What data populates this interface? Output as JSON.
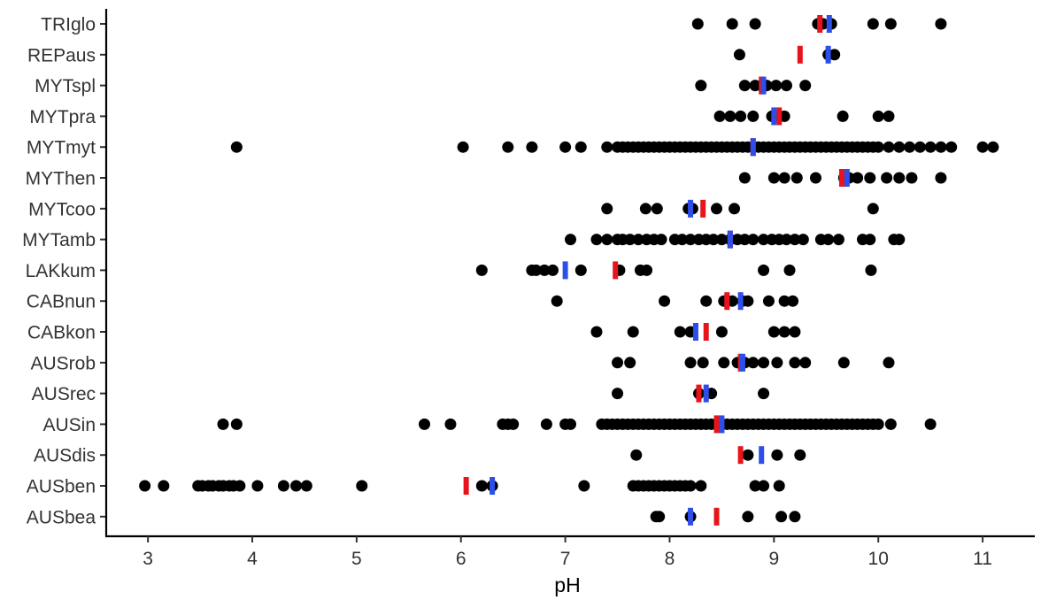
{
  "chart_data": {
    "type": "scatter",
    "xlabel": "pH",
    "ylabel": "",
    "xlim": [
      2.6,
      11.5
    ],
    "xticks": [
      3,
      4,
      5,
      6,
      7,
      8,
      9,
      10,
      11
    ],
    "grid": false,
    "colors": {
      "point": "#000000",
      "mean_marker": "#e8141b",
      "median_marker": "#2d4ee8"
    },
    "categories": [
      "TRIglo",
      "REPaus",
      "MYTspl",
      "MYTpra",
      "MYTmyt",
      "MYThen",
      "MYTcoo",
      "MYTamb",
      "LAKkum",
      "CABnun",
      "CABkon",
      "AUSrob",
      "AUSrec",
      "AUSin",
      "AUSdis",
      "AUSben",
      "AUSbea"
    ],
    "series": [
      {
        "category": "TRIglo",
        "points": [
          8.27,
          8.6,
          8.82,
          9.42,
          9.47,
          9.55,
          9.95,
          10.12,
          10.6
        ],
        "red": 9.44,
        "blue": 9.53
      },
      {
        "category": "REPaus",
        "points": [
          8.67,
          9.52,
          9.58
        ],
        "red": 9.25,
        "blue": 9.52
      },
      {
        "category": "MYTspl",
        "points": [
          8.3,
          8.72,
          8.82,
          8.88,
          8.93,
          9.02,
          9.12,
          9.3
        ],
        "red": 8.88,
        "blue": 8.9
      },
      {
        "category": "MYTpra",
        "points": [
          8.48,
          8.58,
          8.68,
          8.8,
          8.98,
          9.02,
          9.1,
          9.66,
          10.0,
          10.1
        ],
        "red": 9.05,
        "blue": 9.0
      },
      {
        "category": "MYTmyt",
        "points": [
          3.85,
          6.02,
          6.45,
          6.68,
          7.0,
          7.15,
          7.4,
          7.5,
          7.55,
          7.6,
          7.65,
          7.7,
          7.75,
          7.8,
          7.85,
          7.9,
          7.95,
          8.0,
          8.05,
          8.1,
          8.15,
          8.2,
          8.25,
          8.3,
          8.35,
          8.4,
          8.45,
          8.5,
          8.55,
          8.6,
          8.65,
          8.7,
          8.75,
          8.8,
          8.85,
          8.9,
          8.95,
          9.0,
          9.05,
          9.1,
          9.15,
          9.2,
          9.25,
          9.3,
          9.35,
          9.4,
          9.45,
          9.5,
          9.55,
          9.6,
          9.65,
          9.7,
          9.75,
          9.8,
          9.85,
          9.9,
          9.95,
          10.0,
          10.1,
          10.2,
          10.3,
          10.4,
          10.5,
          10.6,
          10.7,
          11.0,
          11.1
        ],
        "red": 8.8,
        "blue": 8.8
      },
      {
        "category": "MYThen",
        "points": [
          8.72,
          9.0,
          9.1,
          9.22,
          9.4,
          9.67,
          9.72,
          9.8,
          9.92,
          10.08,
          10.2,
          10.32,
          10.6
        ],
        "red": 9.65,
        "blue": 9.7
      },
      {
        "category": "MYTcoo",
        "points": [
          7.4,
          7.77,
          7.88,
          8.18,
          8.22,
          8.45,
          8.62,
          9.95
        ],
        "red": 8.32,
        "blue": 8.2
      },
      {
        "category": "MYTamb",
        "points": [
          7.05,
          7.3,
          7.4,
          7.5,
          7.55,
          7.62,
          7.7,
          7.78,
          7.85,
          7.92,
          8.05,
          8.12,
          8.2,
          8.28,
          8.35,
          8.42,
          8.5,
          8.58,
          8.65,
          8.72,
          8.8,
          8.9,
          8.98,
          9.05,
          9.12,
          9.2,
          9.28,
          9.45,
          9.52,
          9.62,
          9.85,
          9.92,
          10.15,
          10.2
        ],
        "red": 8.58,
        "blue": 8.58
      },
      {
        "category": "LAKkum",
        "points": [
          6.2,
          6.68,
          6.72,
          6.8,
          6.88,
          7.15,
          7.52,
          7.72,
          7.78,
          8.9,
          9.15,
          9.93
        ],
        "red": 7.48,
        "blue": 7.0
      },
      {
        "category": "CABnun",
        "points": [
          6.92,
          7.95,
          8.35,
          8.52,
          8.6,
          8.7,
          8.75,
          8.95,
          9.1,
          9.18
        ],
        "red": 8.55,
        "blue": 8.68
      },
      {
        "category": "CABkon",
        "points": [
          7.3,
          7.65,
          8.1,
          8.2,
          8.5,
          9.0,
          9.1,
          9.2
        ],
        "red": 8.35,
        "blue": 8.25
      },
      {
        "category": "AUSrob",
        "points": [
          7.5,
          7.62,
          8.2,
          8.32,
          8.52,
          8.65,
          8.72,
          8.8,
          8.9,
          9.03,
          9.2,
          9.3,
          9.67,
          10.1
        ],
        "red": 8.68,
        "blue": 8.7
      },
      {
        "category": "AUSrec",
        "points": [
          7.5,
          8.28,
          8.4,
          8.9
        ],
        "red": 8.28,
        "blue": 8.35
      },
      {
        "category": "AUSin",
        "points": [
          3.72,
          3.85,
          5.65,
          5.9,
          6.4,
          6.45,
          6.5,
          6.82,
          7.0,
          7.05,
          7.35,
          7.4,
          7.45,
          7.5,
          7.55,
          7.6,
          7.65,
          7.7,
          7.75,
          7.8,
          7.85,
          7.9,
          7.95,
          8.0,
          8.05,
          8.1,
          8.15,
          8.2,
          8.25,
          8.3,
          8.35,
          8.4,
          8.45,
          8.5,
          8.55,
          8.6,
          8.65,
          8.7,
          8.75,
          8.8,
          8.85,
          8.9,
          8.95,
          9.0,
          9.05,
          9.1,
          9.15,
          9.2,
          9.25,
          9.3,
          9.35,
          9.4,
          9.45,
          9.5,
          9.55,
          9.6,
          9.65,
          9.7,
          9.75,
          9.8,
          9.85,
          9.9,
          9.95,
          10.0,
          10.12,
          10.5
        ],
        "red": 8.45,
        "blue": 8.5
      },
      {
        "category": "AUSdis",
        "points": [
          7.68,
          8.75,
          9.03,
          9.25
        ],
        "red": 8.68,
        "blue": 8.88
      },
      {
        "category": "AUSben",
        "points": [
          2.97,
          3.15,
          3.48,
          3.52,
          3.58,
          3.62,
          3.68,
          3.72,
          3.78,
          3.82,
          3.88,
          4.05,
          4.3,
          4.42,
          4.52,
          5.05,
          6.2,
          6.3,
          7.18,
          7.65,
          7.7,
          7.75,
          7.8,
          7.85,
          7.9,
          7.95,
          8.0,
          8.05,
          8.1,
          8.15,
          8.2,
          8.3,
          8.82,
          8.9,
          9.05
        ],
        "red": 6.05,
        "blue": 6.3
      },
      {
        "category": "AUSbea",
        "points": [
          7.87,
          7.9,
          8.2,
          8.75,
          9.07,
          9.2
        ],
        "red": 8.45,
        "blue": 8.2
      }
    ]
  }
}
